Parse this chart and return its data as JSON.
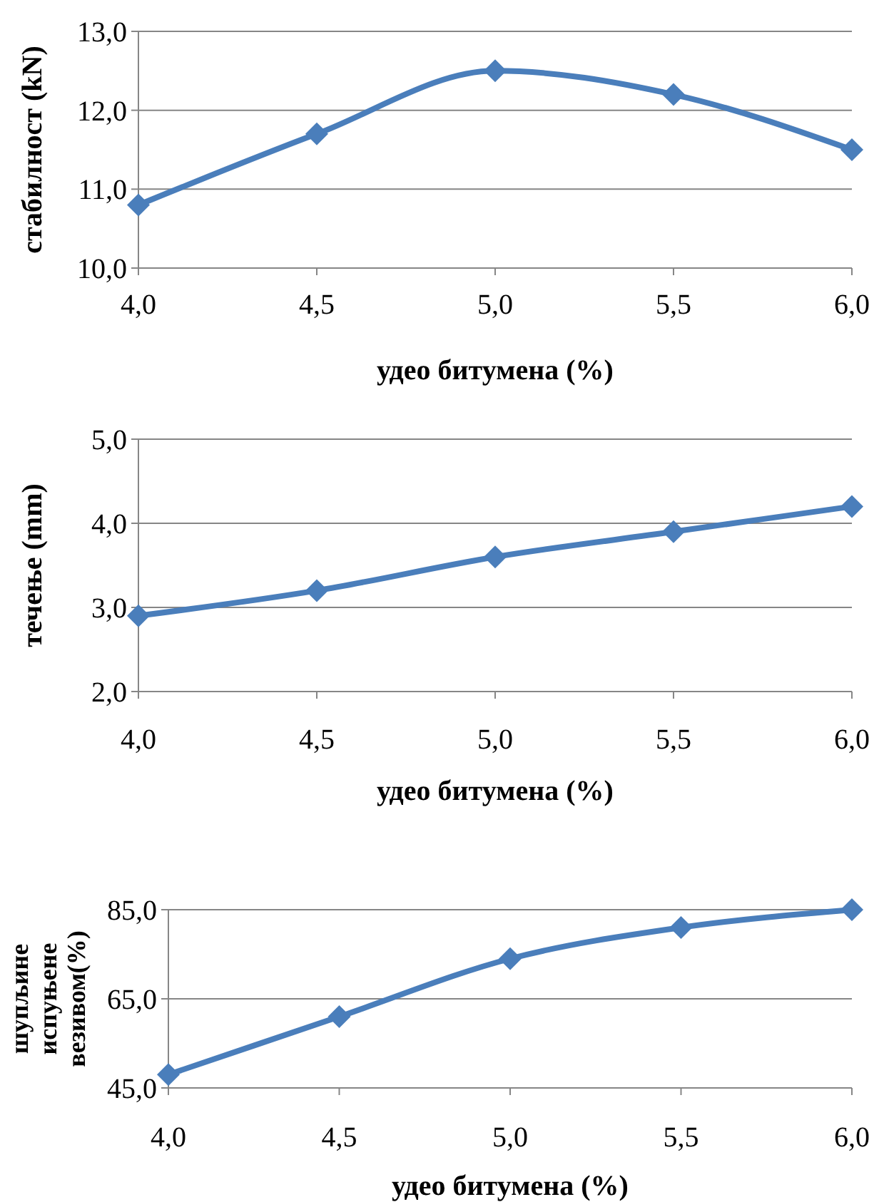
{
  "chart_data": [
    {
      "type": "line",
      "xlabel": "удео битумена (%)",
      "ylabel": "стабилност (kN)",
      "x": [
        4.0,
        4.5,
        5.0,
        5.5,
        6.0
      ],
      "series": [
        {
          "color": "#4a7ebb",
          "values": [
            10.8,
            11.7,
            12.5,
            12.2,
            11.5
          ]
        }
      ],
      "xlim": [
        4,
        6
      ],
      "xticks": [
        {
          "value": 4,
          "label": "4,0"
        },
        {
          "value": 4.5,
          "label": "4,5"
        },
        {
          "value": 5,
          "label": "5,0"
        },
        {
          "value": 5.5,
          "label": "5,5"
        },
        {
          "value": 6,
          "label": "6,0"
        }
      ],
      "ylim": [
        10,
        13
      ],
      "yticks": [
        {
          "value": 10,
          "label": "10,0"
        },
        {
          "value": 11,
          "label": "11,0"
        },
        {
          "value": 12,
          "label": "12,0"
        },
        {
          "value": 13,
          "label": "13,0"
        }
      ],
      "grid": "y",
      "marker": "diamond"
    },
    {
      "type": "line",
      "xlabel": "удео битумена (%)",
      "ylabel": "течење (mm)",
      "x": [
        4.0,
        4.5,
        5.0,
        5.5,
        6.0
      ],
      "series": [
        {
          "color": "#4a7ebb",
          "values": [
            2.9,
            3.2,
            3.6,
            3.9,
            4.2
          ]
        }
      ],
      "xlim": [
        4,
        6
      ],
      "xticks": [
        {
          "value": 4,
          "label": "4,0"
        },
        {
          "value": 4.5,
          "label": "4,5"
        },
        {
          "value": 5,
          "label": "5,0"
        },
        {
          "value": 5.5,
          "label": "5,5"
        },
        {
          "value": 6,
          "label": "6,0"
        }
      ],
      "ylim": [
        2,
        5
      ],
      "yticks": [
        {
          "value": 2,
          "label": "2,0"
        },
        {
          "value": 3,
          "label": "3,0"
        },
        {
          "value": 4,
          "label": "4,0"
        },
        {
          "value": 5,
          "label": "5,0"
        }
      ],
      "grid": "y",
      "marker": "diamond"
    },
    {
      "type": "line",
      "xlabel": "удео битумена (%)",
      "ylabel": "шупљине испуњене везивом(%)",
      "x": [
        4.0,
        4.5,
        5.0,
        5.5,
        6.0
      ],
      "series": [
        {
          "color": "#4a7ebb",
          "values": [
            48,
            61,
            74,
            81,
            85
          ]
        }
      ],
      "xlim": [
        4,
        6
      ],
      "xticks": [
        {
          "value": 4,
          "label": "4,0"
        },
        {
          "value": 4.5,
          "label": "4,5"
        },
        {
          "value": 5,
          "label": "5,0"
        },
        {
          "value": 5.5,
          "label": "5,5"
        },
        {
          "value": 6,
          "label": "6,0"
        }
      ],
      "ylim": [
        45,
        85
      ],
      "yticks": [
        {
          "value": 45,
          "label": "45,0"
        },
        {
          "value": 65,
          "label": "65,0"
        },
        {
          "value": 85,
          "label": "85,0"
        }
      ],
      "grid": "y",
      "marker": "diamond"
    }
  ]
}
